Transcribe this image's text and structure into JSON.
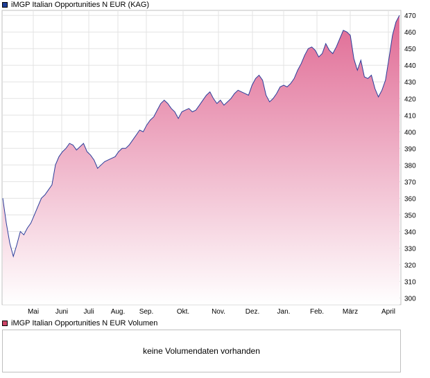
{
  "legend_price": {
    "label": "iMGP Italian Opportunities N EUR (KAG)",
    "color": "#1f3f99"
  },
  "legend_volume": {
    "label": "iMGP Italian Opportunities N EUR Volumen",
    "color": "#cc4466"
  },
  "volume_panel": {
    "message": "keine Volumendaten vorhanden"
  },
  "chart_data": {
    "type": "area",
    "ylim": [
      296,
      473
    ],
    "yticks": [
      300,
      310,
      320,
      330,
      340,
      350,
      360,
      370,
      380,
      390,
      400,
      410,
      420,
      430,
      440,
      450,
      460,
      470
    ],
    "xticks": [
      "Mai",
      "Juni",
      "Juli",
      "Aug.",
      "Sep.",
      "Okt.",
      "Nov.",
      "Dez.",
      "Jan.",
      "Feb.",
      "März",
      "April"
    ],
    "grid": true,
    "line_color": "#2a3d9a",
    "fill_top_color": "#e06a94",
    "fill_bottom_color": "#ffffff",
    "series": [
      {
        "values": [
          360,
          345,
          333,
          325,
          332,
          340,
          338,
          342,
          345,
          350,
          355,
          360,
          362,
          365,
          368,
          380,
          385,
          388,
          390,
          393,
          392,
          389,
          391,
          393,
          388,
          386,
          383,
          378,
          380,
          382,
          383,
          384,
          385,
          388,
          390,
          390,
          392,
          395,
          398,
          401,
          400,
          404,
          407,
          409,
          413,
          417,
          419,
          417,
          414,
          412,
          408,
          412,
          413,
          414,
          412,
          413,
          416,
          419,
          422,
          424,
          420,
          417,
          419,
          416,
          418,
          420,
          423,
          425,
          424,
          423,
          422,
          428,
          432,
          434,
          431,
          422,
          418,
          420,
          423,
          427,
          428,
          427,
          429,
          432,
          437,
          441,
          446,
          450,
          451,
          449,
          445,
          447,
          453,
          449,
          447,
          451,
          456,
          461,
          460,
          458,
          444,
          437,
          443,
          433,
          432,
          434,
          426,
          421,
          425,
          431,
          444,
          458,
          466,
          470
        ]
      }
    ]
  }
}
